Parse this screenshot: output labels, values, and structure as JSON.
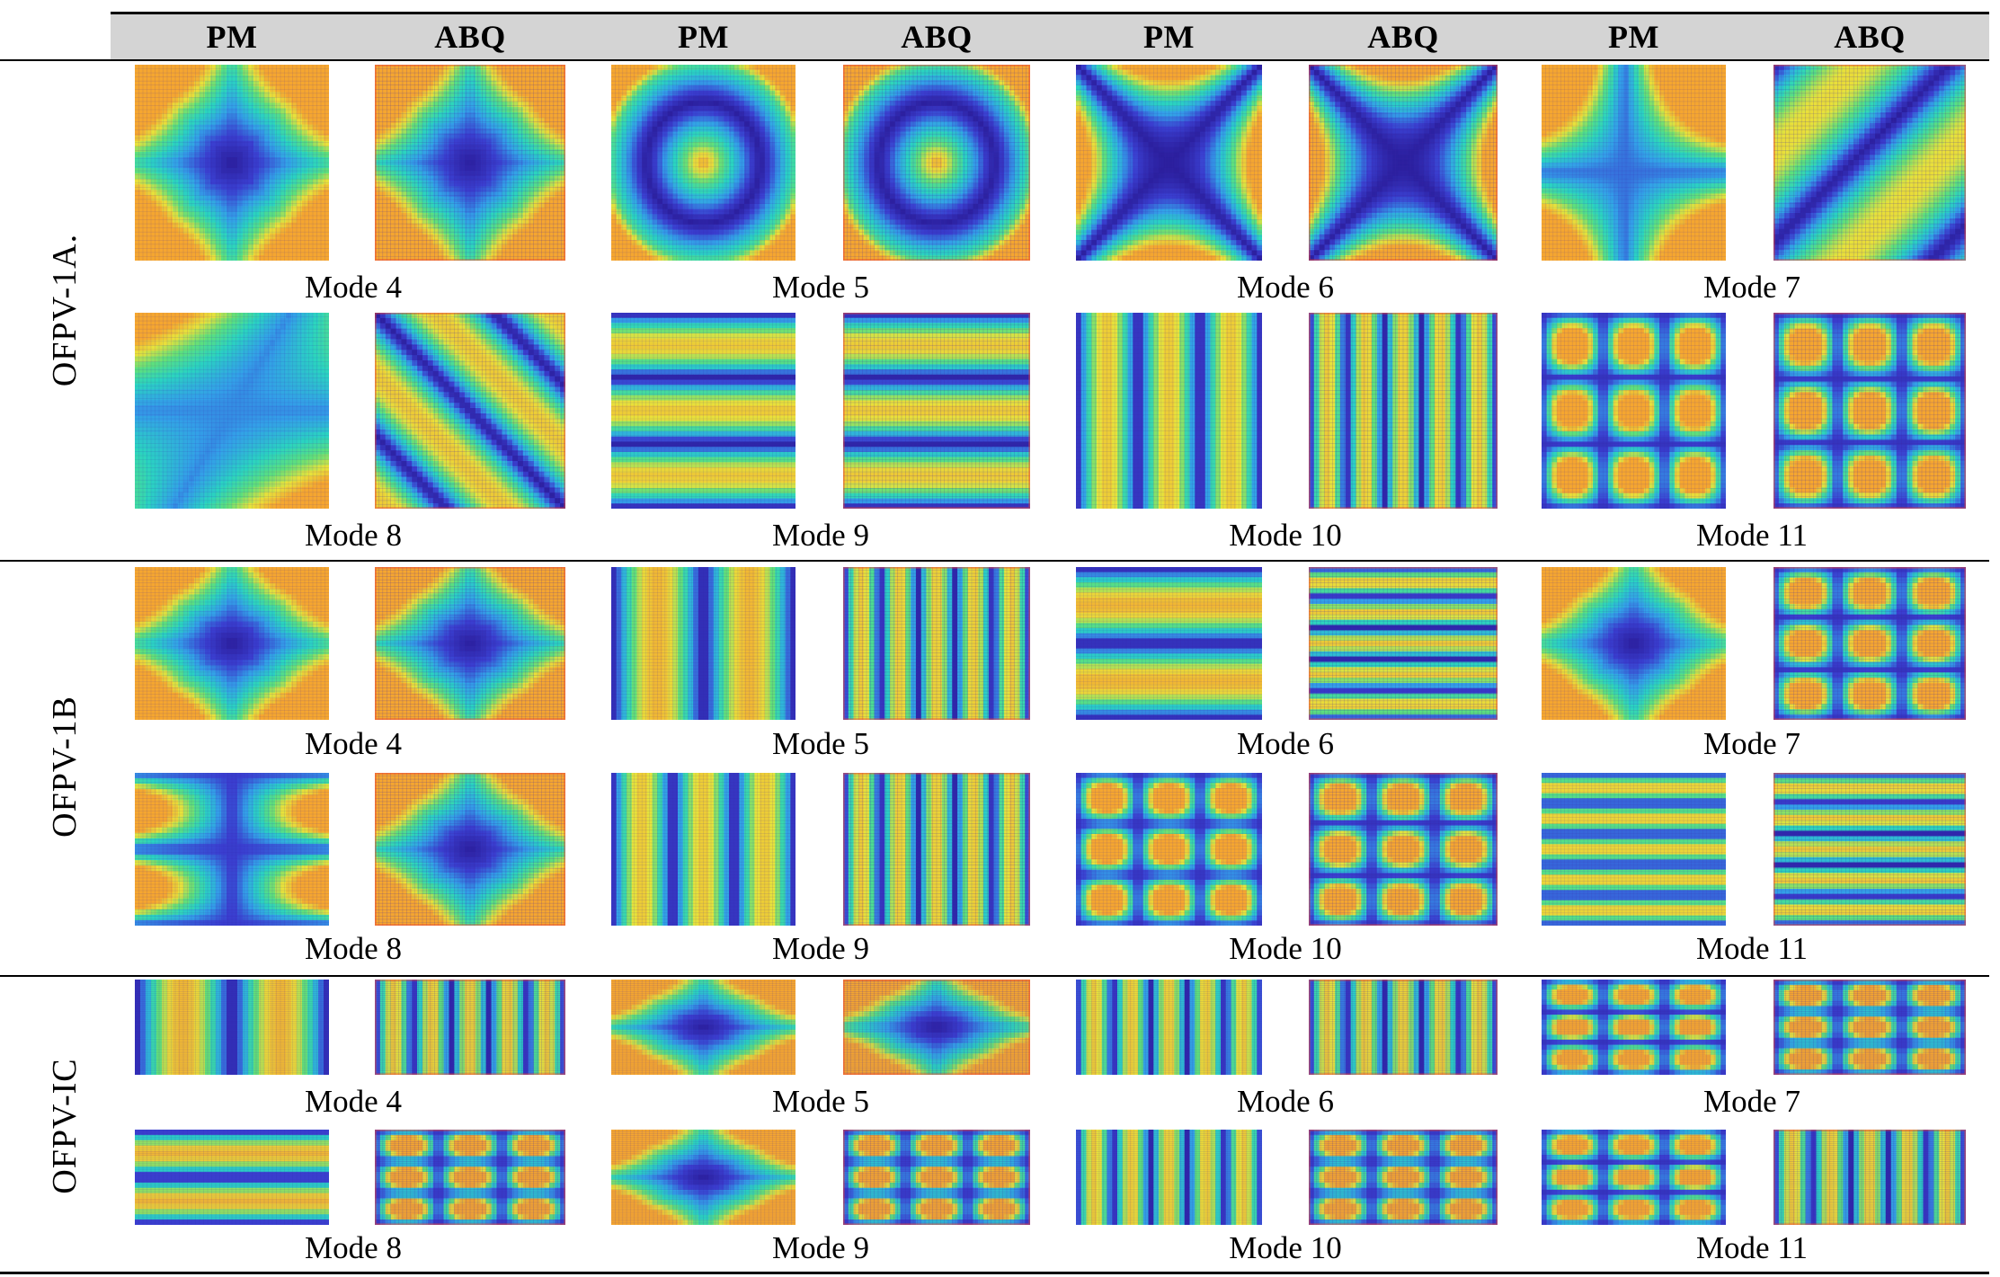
{
  "header": {
    "columns": [
      "PM",
      "ABQ",
      "PM",
      "ABQ",
      "PM",
      "ABQ",
      "PM",
      "ABQ"
    ]
  },
  "groups": [
    {
      "label": "OFPV-1A.",
      "rows": [
        {
          "modes": [
            "Mode 4",
            "Mode 5",
            "Mode 6",
            "Mode 7"
          ],
          "plots": [
            {
              "method": "PM",
              "pattern": "cross",
              "mode": "Mode 4"
            },
            {
              "method": "ABQ",
              "pattern": "cross",
              "mode": "Mode 4"
            },
            {
              "method": "PM",
              "pattern": "ring",
              "mode": "Mode 5"
            },
            {
              "method": "ABQ",
              "pattern": "ring",
              "mode": "Mode 5"
            },
            {
              "method": "PM",
              "pattern": "x",
              "mode": "Mode 6"
            },
            {
              "method": "ABQ",
              "pattern": "x",
              "mode": "Mode 6"
            },
            {
              "method": "PM",
              "pattern": "cross-offset",
              "mode": "Mode 7"
            },
            {
              "method": "ABQ",
              "pattern": "diagonal",
              "mode": "Mode 7"
            }
          ]
        },
        {
          "modes": [
            "Mode 8",
            "Mode 9",
            "Mode 10",
            "Mode 11"
          ],
          "plots": [
            {
              "method": "PM",
              "pattern": "diagonal-cross",
              "mode": "Mode 8"
            },
            {
              "method": "ABQ",
              "pattern": "diagonal-bands",
              "mode": "Mode 8"
            },
            {
              "method": "PM",
              "pattern": "hbands3",
              "mode": "Mode 9"
            },
            {
              "method": "ABQ",
              "pattern": "hbands3",
              "mode": "Mode 9"
            },
            {
              "method": "PM",
              "pattern": "vbands3",
              "mode": "Mode 10"
            },
            {
              "method": "ABQ",
              "pattern": "vbands4",
              "mode": "Mode 10"
            },
            {
              "method": "PM",
              "pattern": "grid2",
              "mode": "Mode 11"
            },
            {
              "method": "ABQ",
              "pattern": "grid2",
              "mode": "Mode 11"
            }
          ]
        }
      ]
    },
    {
      "label": "OFPV-1B",
      "rows": [
        {
          "modes": [
            "Mode 4",
            "Mode 5",
            "Mode 6",
            "Mode 7"
          ],
          "plots": [
            {
              "method": "PM",
              "pattern": "cross",
              "mode": "Mode 4"
            },
            {
              "method": "ABQ",
              "pattern": "cross",
              "mode": "Mode 4"
            },
            {
              "method": "PM",
              "pattern": "vbands2",
              "mode": "Mode 5"
            },
            {
              "method": "ABQ",
              "pattern": "vbands4",
              "mode": "Mode 5"
            },
            {
              "method": "PM",
              "pattern": "hbands2",
              "mode": "Mode 6"
            },
            {
              "method": "ABQ",
              "pattern": "hbands4",
              "mode": "Mode 6"
            },
            {
              "method": "PM",
              "pattern": "cross",
              "mode": "Mode 7"
            },
            {
              "method": "ABQ",
              "pattern": "grid2",
              "mode": "Mode 7"
            }
          ]
        },
        {
          "modes": [
            "Mode 8",
            "Mode 9",
            "Mode 10",
            "Mode 11"
          ],
          "plots": [
            {
              "method": "PM",
              "pattern": "cross-hband",
              "mode": "Mode 8"
            },
            {
              "method": "ABQ",
              "pattern": "cross",
              "mode": "Mode 8"
            },
            {
              "method": "PM",
              "pattern": "vbands3",
              "mode": "Mode 9"
            },
            {
              "method": "ABQ",
              "pattern": "vbands4",
              "mode": "Mode 9"
            },
            {
              "method": "PM",
              "pattern": "grid2",
              "mode": "Mode 10"
            },
            {
              "method": "ABQ",
              "pattern": "grid2",
              "mode": "Mode 10"
            },
            {
              "method": "PM",
              "pattern": "hbands4",
              "mode": "Mode 11"
            },
            {
              "method": "ABQ",
              "pattern": "hbands4",
              "mode": "Mode 11"
            }
          ]
        }
      ]
    },
    {
      "label": "OFPV-IC",
      "rows": [
        {
          "modes": [
            "Mode 4",
            "Mode 5",
            "Mode 6",
            "Mode 7"
          ],
          "plots": [
            {
              "method": "PM",
              "pattern": "vbands2",
              "mode": "Mode 4"
            },
            {
              "method": "ABQ",
              "pattern": "vbands4",
              "mode": "Mode 4"
            },
            {
              "method": "PM",
              "pattern": "cross",
              "mode": "Mode 5"
            },
            {
              "method": "ABQ",
              "pattern": "cross",
              "mode": "Mode 5"
            },
            {
              "method": "PM",
              "pattern": "vbands4",
              "mode": "Mode 6"
            },
            {
              "method": "ABQ",
              "pattern": "vbands4",
              "mode": "Mode 6"
            },
            {
              "method": "PM",
              "pattern": "grid2",
              "mode": "Mode 7"
            },
            {
              "method": "ABQ",
              "pattern": "grid2",
              "mode": "Mode 7"
            }
          ]
        },
        {
          "modes": [
            "Mode 8",
            "Mode 9",
            "Mode 10",
            "Mode 11"
          ],
          "plots": [
            {
              "method": "PM",
              "pattern": "hbands2",
              "mode": "Mode 8"
            },
            {
              "method": "ABQ",
              "pattern": "grid2",
              "mode": "Mode 8"
            },
            {
              "method": "PM",
              "pattern": "cross",
              "mode": "Mode 9"
            },
            {
              "method": "ABQ",
              "pattern": "grid2",
              "mode": "Mode 9"
            },
            {
              "method": "PM",
              "pattern": "vbands4",
              "mode": "Mode 10"
            },
            {
              "method": "ABQ",
              "pattern": "grid2",
              "mode": "Mode 10"
            },
            {
              "method": "PM",
              "pattern": "grid2",
              "mode": "Mode 11"
            },
            {
              "method": "ABQ",
              "pattern": "vbands4",
              "mode": "Mode 11"
            }
          ]
        }
      ]
    }
  ],
  "colors": {
    "node_line": "#2b1f9e",
    "trough": "#3a3fd0",
    "mid_low": "#33a0e8",
    "mid": "#2ad4c0",
    "mid_high": "#5fe07a",
    "high": "#e8e23a",
    "peak": "#f5a630",
    "edge_red": "#e8453a"
  }
}
